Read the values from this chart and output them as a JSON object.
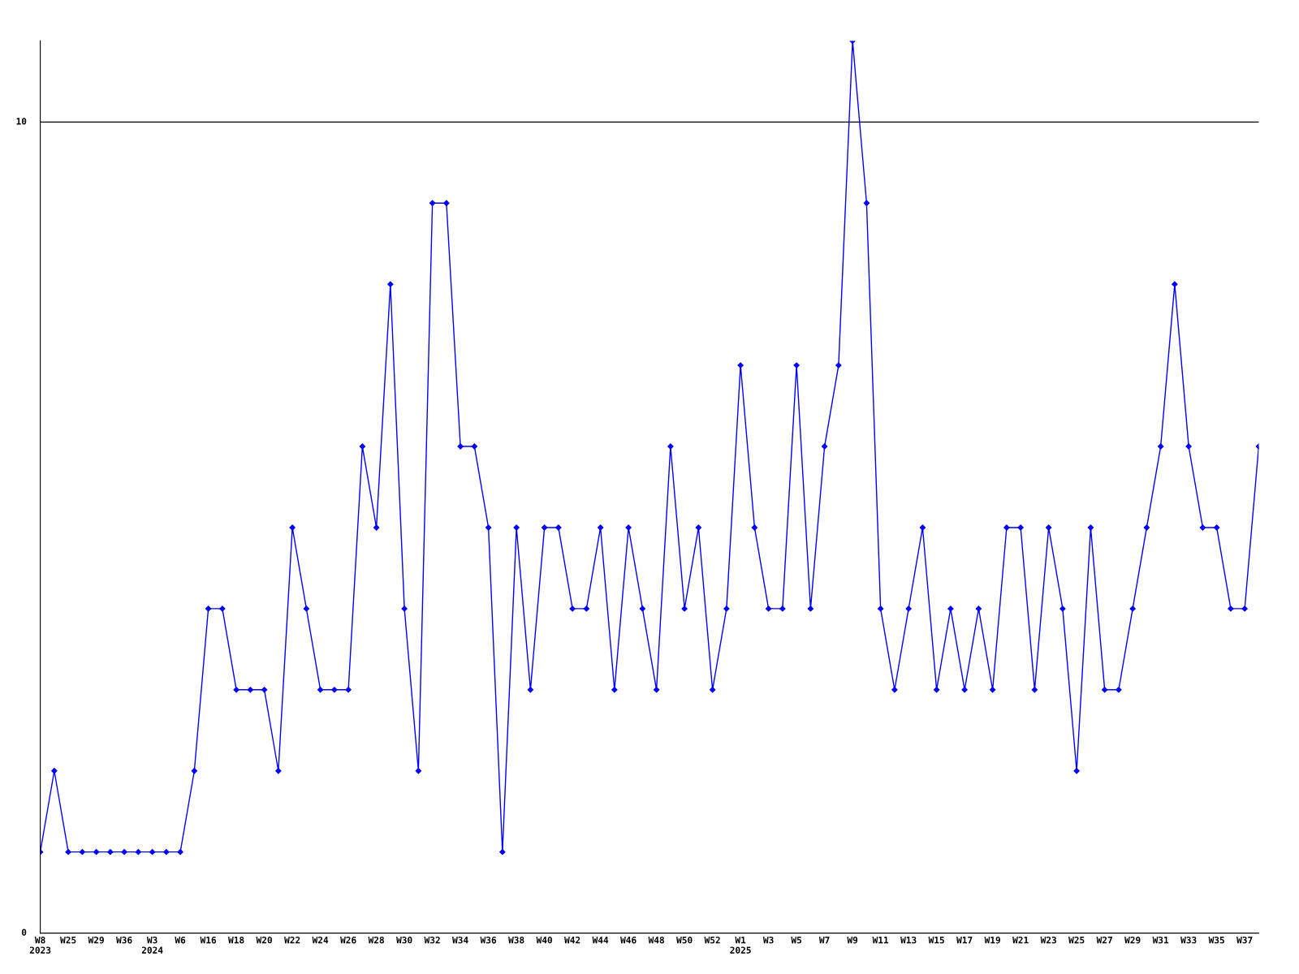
{
  "chart_data": {
    "type": "line",
    "categories": [
      "W8\n2023",
      null,
      "W25",
      null,
      "W29",
      null,
      "W36",
      null,
      "W3\n2024",
      null,
      "W6",
      null,
      "W16",
      null,
      "W18",
      null,
      "W20",
      null,
      "W22",
      null,
      "W24",
      null,
      "W26",
      null,
      "W28",
      null,
      "W30",
      null,
      "W32",
      null,
      "W34",
      null,
      "W36",
      null,
      "W38",
      null,
      "W40",
      null,
      "W42",
      null,
      "W44",
      null,
      "W46",
      null,
      "W48",
      null,
      "W50",
      null,
      "W52",
      null,
      "W1\n2025",
      null,
      "W3",
      null,
      "W5",
      null,
      "W7",
      null,
      "W9",
      null,
      "W11",
      null,
      "W13",
      null,
      "W15",
      null,
      "W17",
      null,
      "W19",
      null,
      "W21",
      null,
      "W23",
      null,
      "W25",
      null,
      "W27",
      null,
      "W29",
      null,
      "W31",
      null,
      "W33",
      null,
      "W35",
      null,
      "W37",
      null
    ],
    "series": [
      {
        "color": "#0000ff",
        "values": [
          1,
          2,
          1,
          1,
          1,
          1,
          1,
          1,
          1,
          1,
          1,
          2,
          4,
          4,
          3,
          3,
          3,
          2,
          5,
          4,
          3,
          3,
          3,
          6,
          5,
          8,
          4,
          2,
          9,
          9,
          6,
          6,
          5,
          1,
          5,
          3,
          5,
          5,
          4,
          4,
          5,
          3,
          5,
          4,
          3,
          6,
          4,
          5,
          3,
          4,
          7,
          5,
          4,
          4,
          7,
          4,
          6,
          7,
          11,
          9,
          4,
          3,
          4,
          5,
          3,
          4,
          3,
          4,
          3,
          5,
          5,
          3,
          5,
          4,
          2,
          5,
          3,
          3,
          4,
          5,
          6,
          8,
          6,
          5,
          5,
          4,
          4,
          6
        ]
      }
    ],
    "ylim": [
      0,
      11
    ],
    "yticks": [
      0,
      10
    ],
    "grid": "y",
    "marker": "diamond",
    "line_style": "solid",
    "legend": false
  }
}
